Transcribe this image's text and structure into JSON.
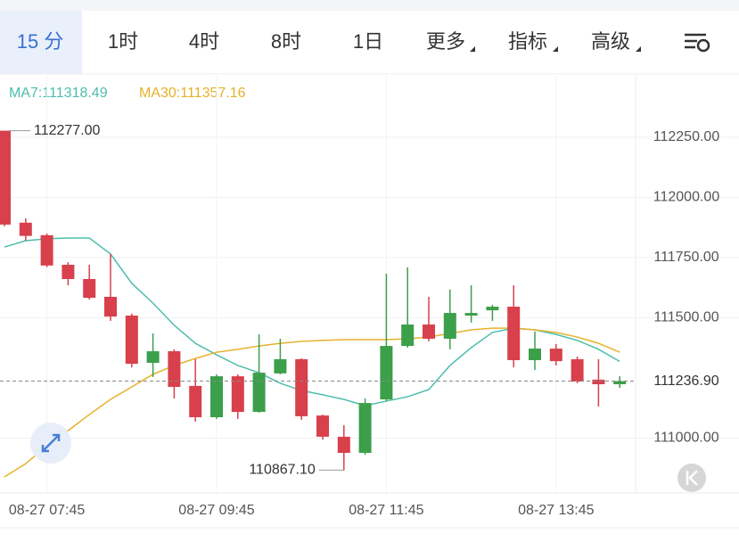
{
  "tabs": [
    "15 分",
    "1时",
    "4时",
    "8时",
    "1日",
    "更多",
    "指标",
    "高级"
  ],
  "chart_data": {
    "type": "candlestick",
    "categories": [
      null,
      null,
      "08-27 07:45",
      null,
      null,
      null,
      null,
      null,
      null,
      null,
      "08-27 09:45",
      null,
      null,
      null,
      null,
      null,
      null,
      null,
      "08-27 11:45",
      null,
      null,
      null,
      null,
      null,
      null,
      null,
      "08-27 13:45",
      null,
      null,
      null
    ],
    "open": [
      112277,
      111895,
      111843,
      111720,
      111661,
      111587,
      111509,
      111313,
      111361,
      111217,
      111087,
      111257,
      111109,
      111269,
      111328,
      111094,
      111006,
      110939,
      111161,
      111383,
      111472,
      111413,
      111509,
      111531,
      111546,
      111324,
      111372,
      111328,
      111243,
      111224
    ],
    "high": [
      112277,
      111913,
      111850,
      111731,
      111720,
      111765,
      111517,
      111435,
      111369,
      111328,
      111265,
      111265,
      111431,
      111413,
      111332,
      111098,
      111054,
      111165,
      111683,
      111709,
      111587,
      111617,
      111635,
      111554,
      111635,
      111443,
      111391,
      111339,
      111328,
      111257
    ],
    "low": [
      111880,
      111820,
      111710,
      111635,
      111576,
      111487,
      111294,
      111254,
      111165,
      111069,
      111080,
      111080,
      111106,
      111265,
      111076,
      110994,
      110867.1,
      110931,
      111154,
      111376,
      111402,
      111369,
      111480,
      111487,
      111294,
      111283,
      111302,
      111228,
      111131,
      111209
    ],
    "close": [
      111887,
      111840,
      111717,
      111661,
      111583,
      111505,
      111309,
      111361,
      111213,
      111087,
      111257,
      111109,
      111272,
      111328,
      111091,
      111006,
      110939,
      111146,
      111383,
      111472,
      111413,
      111520,
      111520,
      111546,
      111324,
      111372,
      111320,
      111235,
      111224,
      111236.9
    ],
    "up_color": "#3c9f4a",
    "down_color": "#d8404c",
    "lines": [
      {
        "label": "MA7:111318.49",
        "color": "#4dbdad",
        "values": [
          111794,
          111820,
          111828,
          111831,
          111831,
          111765,
          111643,
          111561,
          111469,
          111394,
          111346,
          111302,
          111272,
          111228,
          111198,
          111180,
          111161,
          111135,
          111154,
          111172,
          111202,
          111302,
          111376,
          111439,
          111457,
          111450,
          111431,
          111406,
          111369,
          111318.49
        ]
      },
      {
        "label": "MA30:111357.16",
        "color": "#e6b12a",
        "values": [
          110839,
          110894,
          110969,
          111031,
          111098,
          111161,
          111213,
          111265,
          111302,
          111331,
          111357,
          111369,
          111383,
          111394,
          111402,
          111406,
          111409,
          111409,
          111409,
          111413,
          111420,
          111435,
          111450,
          111457,
          111457,
          111450,
          111439,
          111420,
          111394,
          111357.16
        ]
      }
    ],
    "ylim": [
      110765,
      112505
    ],
    "yticks": [
      {
        "value": 111000,
        "label": "111000.00"
      },
      {
        "value": 111500,
        "label": "111500.00"
      },
      {
        "value": 111750,
        "label": "111750.00"
      },
      {
        "value": 112000,
        "label": "112000.00"
      },
      {
        "value": 112250,
        "label": "112250.00"
      }
    ],
    "grid": true,
    "high_label": "112277.00",
    "low_label": "110867.10",
    "last_label": "111236.90"
  }
}
